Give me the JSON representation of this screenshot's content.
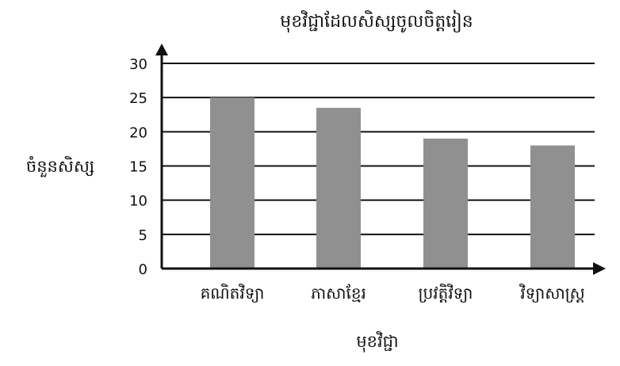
{
  "chart_data": {
    "type": "bar",
    "title": "មុខវិជ្ជាដែលសិស្សចូលចិត្តរៀន",
    "xlabel": "មុខវិជ្ជា",
    "ylabel": "ចំនួនសិស្ស",
    "categories": [
      "គណិតវិទ្យា",
      "ភាសាខ្មែរ",
      "ប្រវត្តិវិទ្យា",
      "វិទ្យាសាស្ត្រ"
    ],
    "values": [
      25,
      23.5,
      19,
      18
    ],
    "yticks": [
      0,
      5,
      10,
      15,
      20,
      25,
      30
    ],
    "ylim": [
      0,
      30
    ],
    "grid": true,
    "legend": "none",
    "colors": {
      "bar": "#8f908f",
      "axis": "#111111",
      "grid": "#111111",
      "text": "#111111"
    }
  }
}
